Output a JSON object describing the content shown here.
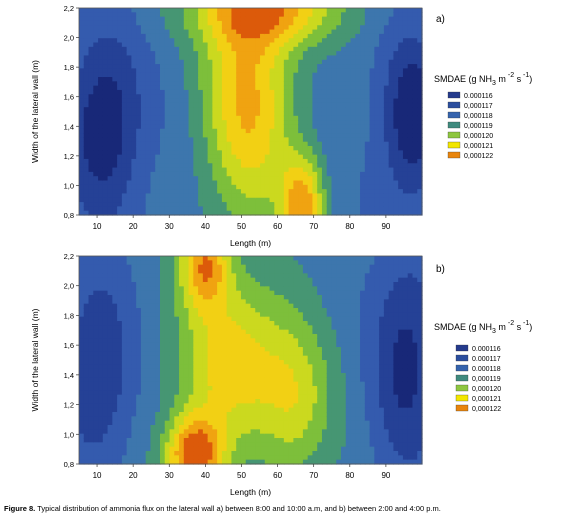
{
  "chart_data": [
    {
      "type": "heatmap",
      "panel_label": "a)",
      "xlabel": "Length (m)",
      "ylabel": "Width of the lateral wall (m)",
      "xlim": [
        5,
        100
      ],
      "ylim": [
        0.8,
        2.2
      ],
      "x_ticks": [
        "10",
        "20",
        "30",
        "40",
        "50",
        "60",
        "70",
        "80",
        "90"
      ],
      "y_ticks": [
        "0,8",
        "1,0",
        "1,2",
        "1,4",
        "1,6",
        "1,8",
        "2,0",
        "2,2"
      ],
      "legend_title": {
        "pre": "SMDAE (g NH",
        "sub": "3",
        "mid": "  m",
        "sup1": " -2",
        "post": " s",
        "sup2": " -1",
        "end": ")"
      },
      "legend": [
        {
          "label": "0.000116",
          "color": "#243a8c"
        },
        {
          "label": "0,000117",
          "color": "#2b4e9e"
        },
        {
          "label": "0,000118",
          "color": "#3563ad"
        },
        {
          "label": "0,000119",
          "color": "#3f8a7e"
        },
        {
          "label": "0,000120",
          "color": "#8ec63f"
        },
        {
          "label": "0,000121",
          "color": "#f2e600"
        },
        {
          "label": "0,000122",
          "color": "#e8850c"
        }
      ]
    },
    {
      "type": "heatmap",
      "panel_label": "b)",
      "xlabel": "Length (m)",
      "ylabel": "Width of the lateral wall (m)",
      "xlim": [
        5,
        100
      ],
      "ylim": [
        0.8,
        2.2
      ],
      "x_ticks": [
        "10",
        "20",
        "30",
        "40",
        "50",
        "60",
        "70",
        "80",
        "90"
      ],
      "y_ticks": [
        "0,8",
        "1,0",
        "1,2",
        "1,4",
        "1,6",
        "1,8",
        "2,0",
        "2,2"
      ],
      "legend_title": {
        "pre": "SMDAE (g NH",
        "sub": "3",
        "mid": " m",
        "sup1": " -2",
        "post": " s",
        "sup2": " -1",
        "end": ")"
      },
      "legend": [
        {
          "label": "0.000116",
          "color": "#243a8c"
        },
        {
          "label": "0.000117",
          "color": "#2b4e9e"
        },
        {
          "label": "0.000118",
          "color": "#3563ad"
        },
        {
          "label": "0,000119",
          "color": "#3f8a7e"
        },
        {
          "label": "0,000120",
          "color": "#8ec63f"
        },
        {
          "label": "0,000121",
          "color": "#f2e600"
        },
        {
          "label": "0,000122",
          "color": "#e8850c"
        }
      ]
    }
  ],
  "caption": {
    "label": "Figure 8.",
    "text": " Typical distribution of ammonia flux on the lateral wall a) between 8:00 and 10:00 a.m, and b) between 2:00 and 4:00 p.m."
  }
}
